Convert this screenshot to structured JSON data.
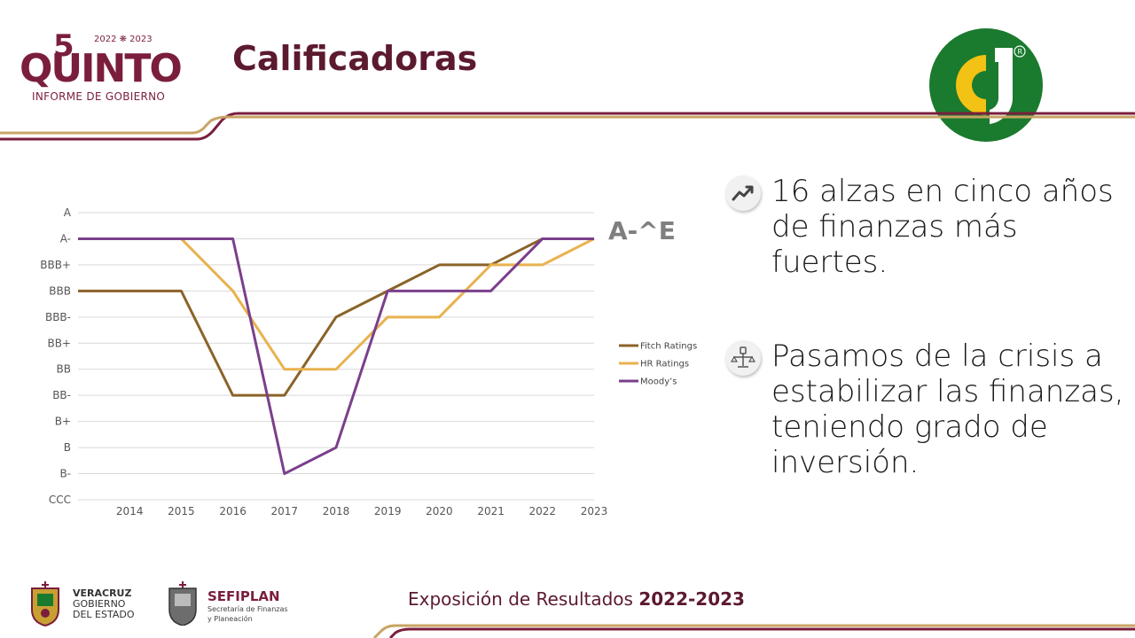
{
  "header": {
    "logo": {
      "main": "QUINTO",
      "number": "5",
      "years": "2022 ❋ 2023",
      "subtitle": "INFORME DE GOBIERNO"
    },
    "title": "Calificadoras",
    "brand_icon": "cd-logo-icon"
  },
  "chart_data": {
    "type": "line",
    "title": "",
    "xlabel": "",
    "ylabel": "",
    "x": [
      "2013",
      "2014",
      "2015",
      "2016",
      "2017",
      "2018",
      "2019",
      "2020",
      "2021",
      "2022",
      "2023"
    ],
    "x_tick_labels": [
      "2014",
      "2015",
      "2016",
      "2017",
      "2018",
      "2019",
      "2020",
      "2021",
      "2022",
      "2023"
    ],
    "y_categories": [
      "CCC",
      "B-",
      "B",
      "B+",
      "BB-",
      "BB",
      "BB+",
      "BBB-",
      "BBB",
      "BBB+",
      "A-",
      "A"
    ],
    "grid": true,
    "legend_position": "right",
    "series": [
      {
        "name": "Fitch Ratings",
        "color": "#8b6328",
        "values": [
          "BBB",
          "BBB",
          "BBB",
          "BB-",
          "BB-",
          "BBB-",
          "BBB",
          "BBB+",
          "BBB+",
          "A-",
          "A-"
        ]
      },
      {
        "name": "HR Ratings",
        "color": "#e8b24f",
        "values": [
          null,
          null,
          "A-",
          "BBB",
          "BB",
          "BB",
          "BBB-",
          "BBB-",
          "BBB+",
          "BBB+",
          "A-"
        ]
      },
      {
        "name": "Moody’s",
        "color": "#7b3f8c",
        "values": [
          "A-",
          "A-",
          "A-",
          "A-",
          "B-",
          "B",
          "BBB",
          "BBB",
          "BBB",
          "A-",
          "A-"
        ]
      }
    ],
    "annotation": "A-^E"
  },
  "bullets": [
    {
      "icon": "trend-up-icon",
      "text": "16 alzas en cinco años de finanzas más fuertes."
    },
    {
      "icon": "balance-scale-icon",
      "text": "Pasamos de la crisis a estabilizar las finanzas, teniendo grado de inversión."
    }
  ],
  "footer": {
    "veracruz": {
      "line1": "VERACRUZ",
      "line2": "GOBIERNO",
      "line3": "DEL ESTADO"
    },
    "sefiplan": {
      "name": "SEFIPLAN",
      "line1": "Secretaría de Finanzas",
      "line2": "y Planeación"
    },
    "exposicion_label": "Exposición de Resultados",
    "exposicion_years": "2022-2023"
  },
  "colors": {
    "maroon": "#7a1e3c",
    "gold": "#c8a465",
    "green": "#1a7a2e",
    "yellow": "#f2c214"
  }
}
